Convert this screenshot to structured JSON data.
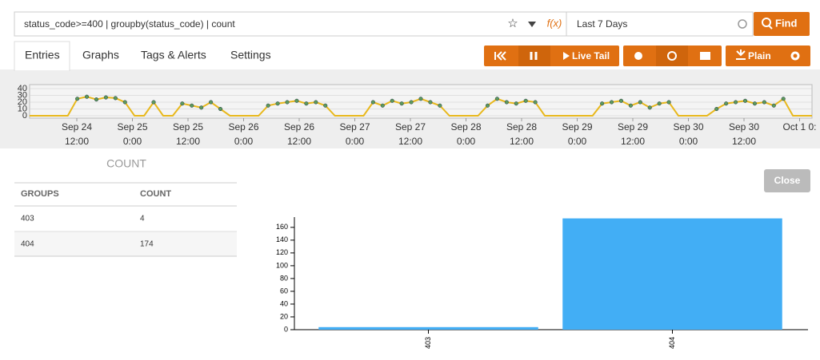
{
  "search": {
    "query": "status_code>=400 | groupby(status_code) | count",
    "fx": "f(x)",
    "time_range": "Last 7 Days",
    "find": "Find"
  },
  "tabs": [
    "Entries",
    "Graphs",
    "Tags & Alerts",
    "Settings"
  ],
  "toolbar": {
    "live_tail": "Live Tail",
    "plain": "Plain"
  },
  "table": {
    "title": "COUNT",
    "headers": [
      "GROUPS",
      "COUNT"
    ],
    "rows": [
      [
        "403",
        4
      ],
      [
        "404",
        174
      ]
    ]
  },
  "close": "Close",
  "chart_data": [
    {
      "type": "line",
      "color": "#e8b81c",
      "ylim": [
        0,
        40
      ],
      "yticks": [
        0,
        10,
        20,
        30,
        40
      ],
      "xticks": [
        [
          "Sep 24",
          "12:00"
        ],
        [
          "Sep 25",
          "0:00"
        ],
        [
          "Sep 25",
          "12:00"
        ],
        [
          "Sep 26",
          "0:00"
        ],
        [
          "Sep 26",
          "12:00"
        ],
        [
          "Sep 27",
          "0:00"
        ],
        [
          "Sep 27",
          "12:00"
        ],
        [
          "Sep 28",
          "0:00"
        ],
        [
          "Sep 28",
          "12:00"
        ],
        [
          "Sep 29",
          "0:00"
        ],
        [
          "Sep 29",
          "12:00"
        ],
        [
          "Sep 30",
          "0:00"
        ],
        [
          "Sep 30",
          "12:00"
        ],
        [
          "Oct 1 0:"
        ]
      ],
      "values": [
        0,
        0,
        0,
        0,
        0,
        25,
        28,
        24,
        27,
        26,
        20,
        0,
        0,
        20,
        0,
        0,
        18,
        15,
        12,
        20,
        10,
        0,
        0,
        0,
        0,
        15,
        18,
        20,
        22,
        18,
        20,
        15,
        0,
        0,
        0,
        0,
        20,
        15,
        22,
        18,
        20,
        25,
        20,
        15,
        0,
        0,
        0,
        0,
        15,
        25,
        20,
        18,
        22,
        20,
        0,
        0,
        0,
        0,
        0,
        0,
        18,
        20,
        22,
        15,
        20,
        12,
        18,
        20,
        0,
        0,
        0,
        0,
        10,
        18,
        20,
        22,
        18,
        20,
        15,
        25,
        0,
        0,
        0
      ]
    },
    {
      "type": "bar",
      "color": "#42aef5",
      "categories": [
        "403",
        "404"
      ],
      "values": [
        4,
        174
      ],
      "ylim": [
        0,
        176
      ],
      "yticks": [
        0,
        20,
        40,
        60,
        80,
        100,
        120,
        140,
        160
      ]
    }
  ]
}
